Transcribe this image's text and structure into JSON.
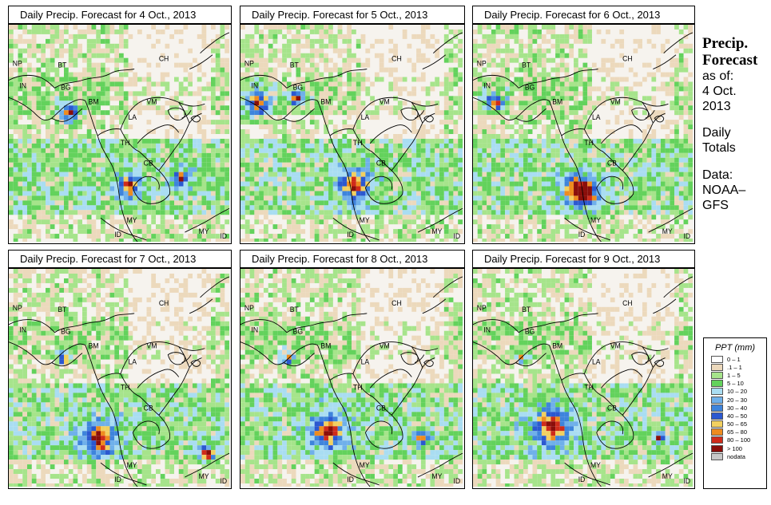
{
  "panels": [
    {
      "title": "Daily Precip. Forecast for  4 Oct., 2013"
    },
    {
      "title": "Daily Precip. Forecast for  5 Oct., 2013"
    },
    {
      "title": "Daily Precip. Forecast for  6 Oct., 2013"
    },
    {
      "title": "Daily Precip. Forecast for  7 Oct., 2013"
    },
    {
      "title": "Daily Precip. Forecast for  8 Oct., 2013"
    },
    {
      "title": "Daily Precip. Forecast for  9 Oct., 2013"
    }
  ],
  "country_labels": {
    "np": "NP",
    "bt": "BT",
    "in": "IN",
    "bg": "BG",
    "bm": "BM",
    "ch": "CH",
    "vm": "VM",
    "la": "LA",
    "th": "TH",
    "cb": "CB",
    "my": "MY",
    "id": "ID"
  },
  "side": {
    "heading_1": "Precip.",
    "heading_2": "Forecast",
    "as_of": "as of:",
    "date_1": "4 Oct.",
    "date_2": "2013",
    "daily_1": "Daily",
    "daily_2": "Totals",
    "data_1": "Data:",
    "data_2": "NOAA–",
    "data_3": "GFS"
  },
  "legend": {
    "title": "PPT (mm)",
    "ranges": [
      {
        "label": "0 – 1",
        "color": "#ffffff"
      },
      {
        "label": ".1 – 1",
        "color": "#ecd9bc"
      },
      {
        "label": "1 – 5",
        "color": "#a6e48b"
      },
      {
        "label": "5 – 10",
        "color": "#63d25c"
      },
      {
        "label": "10 – 20",
        "color": "#a9ddf2"
      },
      {
        "label": "20 – 30",
        "color": "#6fb0ea"
      },
      {
        "label": "30 – 40",
        "color": "#3e84dc"
      },
      {
        "label": "40 – 50",
        "color": "#2b58d0"
      },
      {
        "label": "50 – 65",
        "color": "#f2d060"
      },
      {
        "label": "65 – 80",
        "color": "#ee8c1f"
      },
      {
        "label": "80 – 100",
        "color": "#d02b1a"
      },
      {
        "label": "> 100",
        "color": "#8a0e0a"
      },
      {
        "label": "nodata",
        "color": "#c8c8c8"
      }
    ]
  }
}
